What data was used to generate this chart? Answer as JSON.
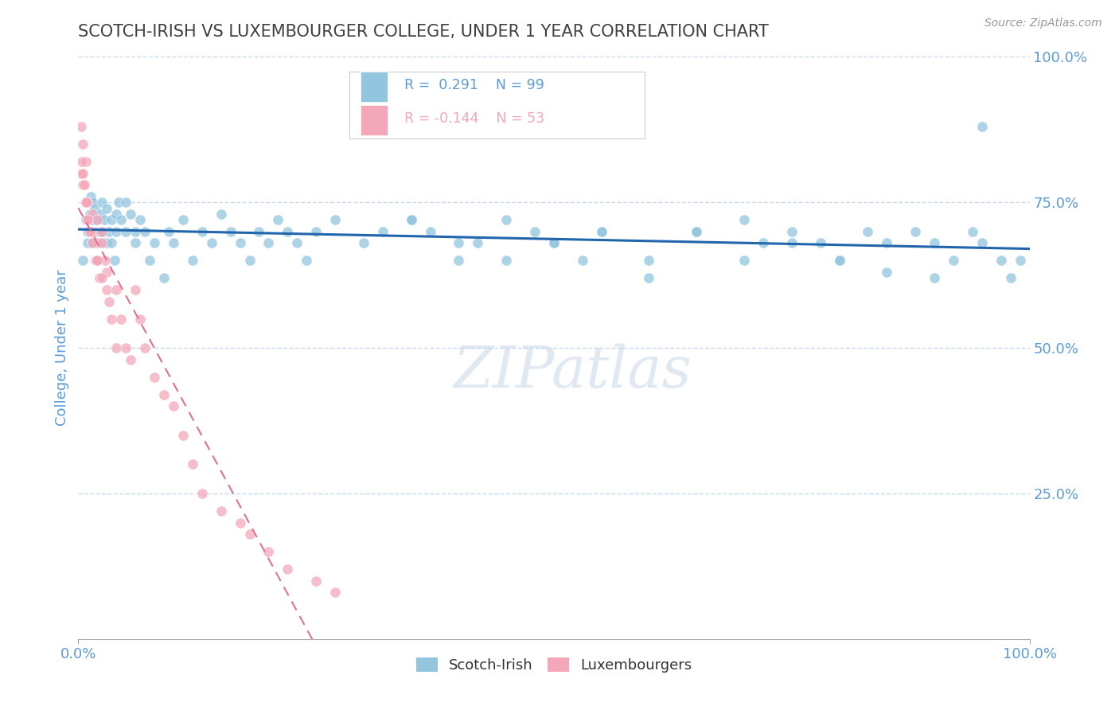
{
  "title": "SCOTCH-IRISH VS LUXEMBOURGER COLLEGE, UNDER 1 YEAR CORRELATION CHART",
  "source": "Source: ZipAtlas.com",
  "ylabel": "College, Under 1 year",
  "legend_label_blue": "Scotch-Irish",
  "legend_label_pink": "Luxembourgers",
  "r_blue": 0.291,
  "n_blue": 99,
  "r_pink": -0.144,
  "n_pink": 53,
  "blue_color": "#92c5de",
  "pink_color": "#f4a7b9",
  "trend_blue_color": "#2166ac",
  "trend_pink_color": "#e07090",
  "axis_label_color": "#5b9bd5",
  "grid_color": "#c9d9ec",
  "title_color": "#404040",
  "watermark": "ZIPatlas",
  "blue_scatter_x": [
    0.5,
    0.8,
    1.0,
    1.0,
    1.2,
    1.2,
    1.3,
    1.5,
    1.5,
    1.5,
    1.7,
    1.8,
    2.0,
    2.0,
    2.2,
    2.3,
    2.3,
    2.5,
    2.5,
    2.7,
    3.0,
    3.0,
    3.2,
    3.5,
    3.5,
    3.8,
    4.0,
    4.0,
    4.2,
    4.5,
    5.0,
    5.0,
    5.5,
    6.0,
    6.0,
    6.5,
    7.0,
    7.5,
    8.0,
    9.0,
    9.5,
    10.0,
    11.0,
    12.0,
    13.0,
    14.0,
    15.0,
    16.0,
    17.0,
    18.0,
    19.0,
    20.0,
    21.0,
    22.0,
    23.0,
    24.0,
    25.0,
    27.0,
    30.0,
    32.0,
    35.0,
    37.0,
    40.0,
    42.0,
    45.0,
    48.0,
    50.0,
    53.0,
    55.0,
    60.0,
    65.0,
    70.0,
    72.0,
    75.0,
    78.0,
    80.0,
    83.0,
    85.0,
    88.0,
    90.0,
    92.0,
    94.0,
    95.0,
    97.0,
    98.0,
    99.0,
    35.0,
    40.0,
    45.0,
    50.0,
    55.0,
    60.0,
    65.0,
    70.0,
    75.0,
    80.0,
    85.0,
    90.0,
    95.0
  ],
  "blue_scatter_y": [
    65,
    72,
    70,
    68,
    75,
    73,
    76,
    72,
    75,
    68,
    74,
    70,
    72,
    65,
    68,
    70,
    73,
    75,
    70,
    72,
    68,
    74,
    70,
    72,
    68,
    65,
    70,
    73,
    75,
    72,
    70,
    75,
    73,
    70,
    68,
    72,
    70,
    65,
    68,
    62,
    70,
    68,
    72,
    65,
    70,
    68,
    73,
    70,
    68,
    65,
    70,
    68,
    72,
    70,
    68,
    65,
    70,
    72,
    68,
    70,
    72,
    70,
    65,
    68,
    72,
    70,
    68,
    65,
    70,
    62,
    70,
    72,
    68,
    70,
    68,
    65,
    70,
    68,
    70,
    68,
    65,
    70,
    68,
    65,
    62,
    65,
    72,
    68,
    65,
    68,
    70,
    65,
    70,
    65,
    68,
    65,
    63,
    62,
    88
  ],
  "pink_scatter_x": [
    0.3,
    0.5,
    0.5,
    0.8,
    0.8,
    1.0,
    1.0,
    1.2,
    1.5,
    1.5,
    1.8,
    2.0,
    2.0,
    2.0,
    2.2,
    2.5,
    2.5,
    2.8,
    3.0,
    3.0,
    3.2,
    3.5,
    4.0,
    4.0,
    4.5,
    5.0,
    5.5,
    6.0,
    6.5,
    7.0,
    8.0,
    9.0,
    10.0,
    11.0,
    12.0,
    13.0,
    15.0,
    17.0,
    18.0,
    20.0,
    22.0,
    25.0,
    27.0,
    0.3,
    0.4,
    0.5,
    0.6,
    0.8,
    1.0,
    1.2,
    1.5,
    2.0,
    2.5
  ],
  "pink_scatter_y": [
    80,
    85,
    78,
    75,
    82,
    72,
    75,
    70,
    70,
    73,
    65,
    72,
    68,
    65,
    62,
    70,
    68,
    65,
    60,
    63,
    58,
    55,
    50,
    60,
    55,
    50,
    48,
    60,
    55,
    50,
    45,
    42,
    40,
    35,
    30,
    25,
    22,
    20,
    18,
    15,
    12,
    10,
    8,
    88,
    82,
    80,
    78,
    75,
    72,
    70,
    68,
    65,
    62
  ],
  "xlim": [
    0.0,
    100.0
  ],
  "ylim": [
    0.0,
    100.0
  ],
  "ytick_values": [
    25.0,
    50.0,
    75.0,
    100.0
  ],
  "figsize": [
    14.06,
    8.92
  ],
  "dpi": 100
}
